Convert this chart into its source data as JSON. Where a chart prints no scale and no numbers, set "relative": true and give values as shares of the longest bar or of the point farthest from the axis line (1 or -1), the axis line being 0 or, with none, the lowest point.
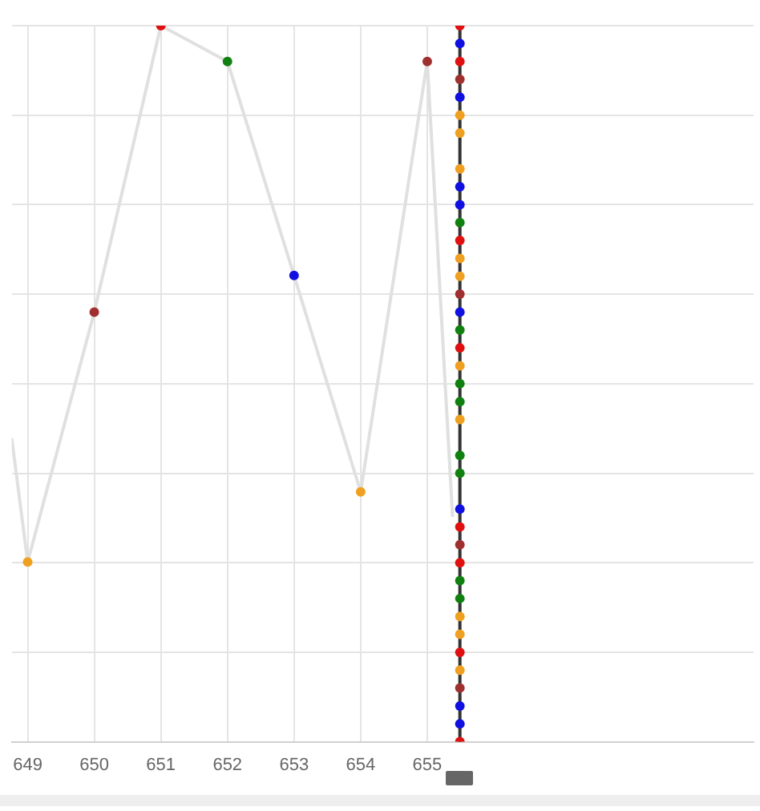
{
  "chart_data": {
    "type": "line",
    "relative": true,
    "grid": true,
    "legend": false,
    "marker": "circle",
    "xlim": [
      648.76,
      659.9
    ],
    "xticks": [
      649,
      650,
      651,
      652,
      653,
      654,
      655
    ],
    "series": [
      {
        "color": "#e0e0e0",
        "x": [
          648.76,
          649,
          650,
          651,
          652,
          653,
          654,
          655,
          655.38
        ],
        "values": [
          0.424,
          0.251,
          0.6,
          1,
          0.95,
          0.651,
          0.349,
          0.95,
          0.314
        ],
        "colors": [
          null,
          "#f0a020",
          "#a03030",
          "#e01010",
          "#108010",
          "#1010e0",
          "#f0a020",
          "#a03030",
          null
        ]
      },
      {
        "color": "#333333",
        "x": [
          655.49,
          655.49,
          655.49,
          655.49,
          655.49,
          655.49,
          655.49,
          655.49,
          655.49,
          655.49,
          655.49,
          655.49,
          655.49,
          655.49,
          655.49,
          655.49,
          655.49,
          655.49,
          655.49,
          655.49,
          655.49,
          655.49,
          655.49,
          655.49,
          655.49,
          655.49,
          655.49,
          655.49,
          655.49,
          655.49,
          655.49,
          655.49,
          655.49,
          655.49,
          655.49,
          655.49,
          655.49,
          655.49
        ],
        "values": [
          1,
          0.975,
          0.95,
          0.925,
          0.9,
          0.875,
          0.85,
          0.8,
          0.775,
          0.75,
          0.725,
          0.7,
          0.675,
          0.65,
          0.625,
          0.6,
          0.575,
          0.55,
          0.525,
          0.5,
          0.475,
          0.45,
          0.4,
          0.375,
          0.325,
          0.3,
          0.275,
          0.25,
          0.225,
          0.2,
          0.175,
          0.15,
          0.125,
          0.1,
          0.075,
          0.05,
          0.025,
          0
        ],
        "colors": [
          "#e01010",
          "#1010e0",
          "#e01010",
          "#a03030",
          "#1010e0",
          "#f0a020",
          "#f0a020",
          "#f0a020",
          "#1010e0",
          "#1010e0",
          "#108010",
          "#e01010",
          "#f0a020",
          "#f0a020",
          "#a03030",
          "#1010e0",
          "#108010",
          "#e01010",
          "#f0a020",
          "#108010",
          "#108010",
          "#f0a020",
          "#108010",
          "#108010",
          "#1010e0",
          "#e01010",
          "#a03030",
          "#e01010",
          "#108010",
          "#108010",
          "#f0a020",
          "#f0a020",
          "#e01010",
          "#f0a020",
          "#a03030",
          "#1010e0",
          "#1010e0",
          "#e01010"
        ]
      }
    ]
  }
}
